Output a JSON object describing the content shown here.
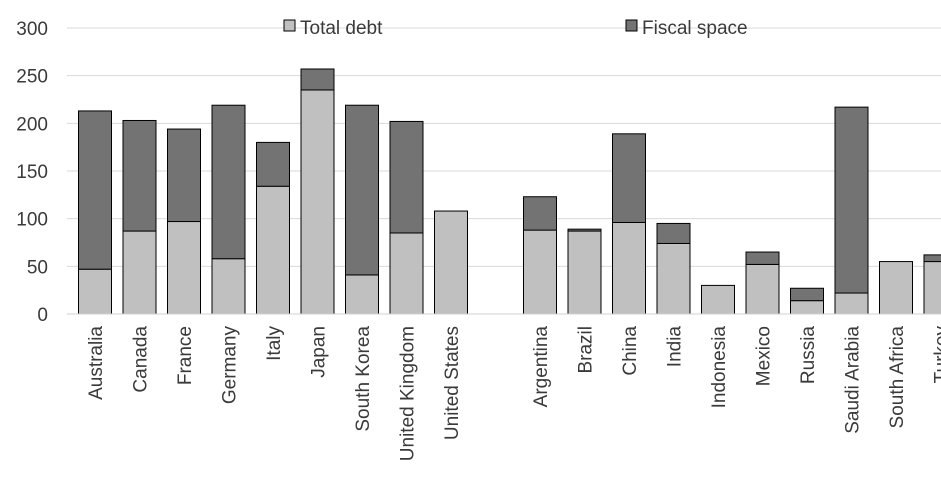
{
  "chart_data": {
    "type": "bar",
    "stacked": true,
    "categories": [
      "Australia",
      "Canada",
      "France",
      "Germany",
      "Italy",
      "Japan",
      "South Korea",
      "United Kingdom",
      "United States",
      "",
      "Argentina",
      "Brazil",
      "China",
      "India",
      "Indonesia",
      "Mexico",
      "Russia",
      "Saudi Arabia",
      "South Africa",
      "Turkey"
    ],
    "series": [
      {
        "name": "Total debt",
        "color": "#c0c0c0",
        "values": [
          47,
          87,
          97,
          58,
          134,
          235,
          41,
          85,
          108,
          null,
          88,
          87,
          96,
          74,
          30,
          52,
          14,
          22,
          55,
          55
        ]
      },
      {
        "name": "Fiscal space",
        "color": "#737373",
        "values": [
          166,
          116,
          97,
          161,
          46,
          22,
          178,
          117,
          0,
          null,
          35,
          2,
          93,
          21,
          0,
          13,
          13,
          195,
          0,
          7
        ]
      }
    ],
    "yticks": [
      0,
      50,
      100,
      150,
      200,
      250,
      300
    ],
    "ylim": [
      0,
      300
    ],
    "xlabel": "",
    "ylabel": "",
    "title": "",
    "grid": "horizontal",
    "legend_position": "top"
  }
}
